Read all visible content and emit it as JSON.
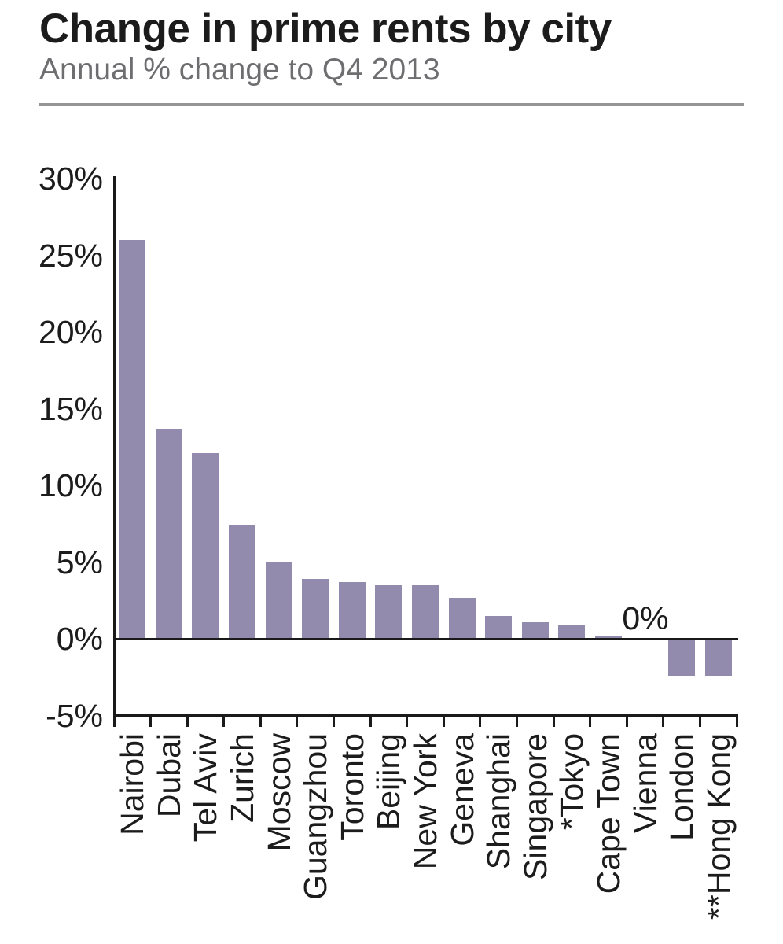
{
  "header": {
    "title": "Change in prime rents by city",
    "subtitle": "Annual % change to Q4 2013"
  },
  "chart_data": {
    "type": "bar",
    "title": "Change in prime rents by city",
    "subtitle": "Annual % change to Q4 2013",
    "categories": [
      "Nairobi",
      "Dubai",
      "Tel Aviv",
      "Zurich",
      "Moscow",
      "Guangzhou",
      "Toronto",
      "Beijing",
      "New York",
      "Geneva",
      "Shanghai",
      "Singapore",
      "*Tokyo",
      "Cape Town",
      "Vienna",
      "London",
      "**Hong Kong"
    ],
    "values": [
      26.0,
      13.7,
      12.1,
      7.4,
      5.0,
      3.9,
      3.7,
      3.5,
      3.5,
      2.7,
      1.5,
      1.1,
      0.9,
      0.2,
      0.0,
      -2.4,
      -2.4
    ],
    "unit": "%",
    "xlabel": "",
    "ylabel": "",
    "ylim": [
      -5,
      30
    ],
    "ytick_step": 5,
    "ytick_labels": [
      "30%",
      "25%",
      "20%",
      "15%",
      "10%",
      "5%",
      "0%",
      "-5%"
    ],
    "grid": false,
    "legend": false,
    "annotations": [
      {
        "text": "0%",
        "category": "Vienna"
      }
    ],
    "bar_color": "#938bad",
    "axis_color": "#1a1a1a"
  },
  "colors": {
    "title_text": "#1c1c1c",
    "subtitle_text": "#6e6e71",
    "divider": "#959595",
    "bar": "#938bad",
    "axis": "#1a1a1a"
  }
}
